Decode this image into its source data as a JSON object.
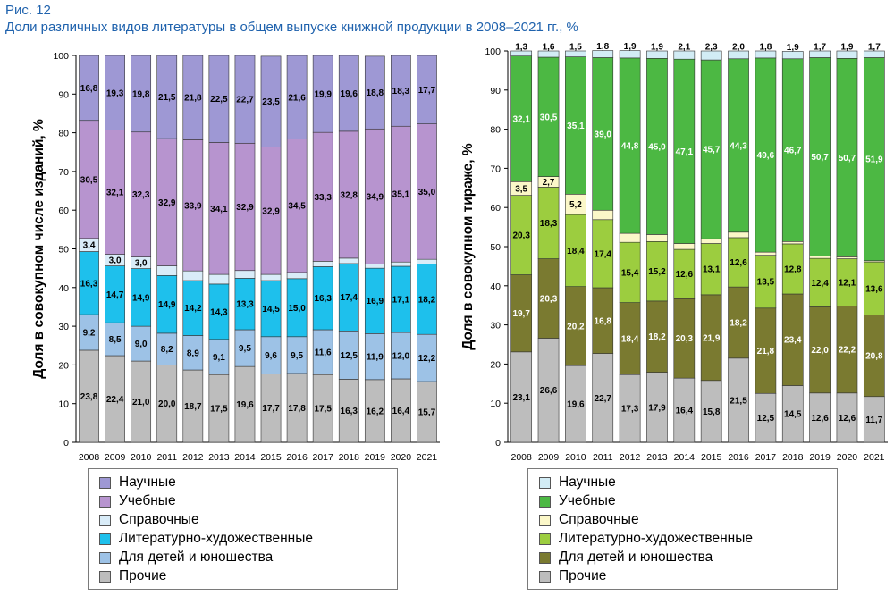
{
  "figure": {
    "number": "Рис. 12",
    "title": "Доли различных видов литературы в общем выпуске книжной продукции в 2008–2021 гг., %"
  },
  "chart_data": [
    {
      "type": "bar",
      "stacked": true,
      "title": "",
      "xlabel": "",
      "ylabel": "Доля в совокупном числе изданий, %",
      "ylim": [
        0,
        100
      ],
      "yticks": [
        0,
        10,
        20,
        30,
        40,
        50,
        60,
        70,
        80,
        90,
        100
      ],
      "grid": false,
      "legend": "bottom",
      "categories": [
        "2008",
        "2009",
        "2010",
        "2011",
        "2012",
        "2013",
        "2014",
        "2015",
        "2016",
        "2017",
        "2018",
        "2019",
        "2020",
        "2021"
      ],
      "series": [
        {
          "name": "Прочие",
          "color": "#bdbdbd",
          "values": [
            23.8,
            22.4,
            21.0,
            20.0,
            18.7,
            17.5,
            19.6,
            17.7,
            17.8,
            17.5,
            16.3,
            16.2,
            16.4,
            15.7
          ],
          "labels": [
            "23,8",
            "22,4",
            "21,0",
            "20,0",
            "18,7",
            "17,5",
            "19,6",
            "17,7",
            "17,8",
            "17,5",
            "16,3",
            "16,2",
            "16,4",
            "15,7"
          ]
        },
        {
          "name": "Для детей и юношества",
          "color": "#9dc2e6",
          "values": [
            9.2,
            8.5,
            9.0,
            8.2,
            8.9,
            9.1,
            9.5,
            9.6,
            9.5,
            11.6,
            12.5,
            11.9,
            12.0,
            12.2
          ],
          "labels": [
            "9,2",
            "8,5",
            "9,0",
            "8,2",
            "8,9",
            "9,1",
            "9,5",
            "9,6",
            "9,5",
            "11,6",
            "12,5",
            "11,9",
            "12,0",
            "12,2"
          ]
        },
        {
          "name": "Литературно-художественные",
          "color": "#1ec0ec",
          "values": [
            16.3,
            14.7,
            14.9,
            14.9,
            14.2,
            14.3,
            13.3,
            14.5,
            15.0,
            16.3,
            17.4,
            16.9,
            17.1,
            18.2
          ],
          "labels": [
            "16,3",
            "14,7",
            "14,9",
            "14,9",
            "14,2",
            "14,3",
            "13,3",
            "14,5",
            "15,0",
            "16,3",
            "17,4",
            "16,9",
            "17,1",
            "18,2"
          ]
        },
        {
          "name": "Справочные",
          "color": "#d9ecf8",
          "values": [
            3.4,
            3.0,
            3.0,
            2.5,
            2.5,
            2.5,
            2.0,
            1.6,
            1.6,
            1.4,
            1.4,
            1.1,
            1.1,
            1.2
          ],
          "labels": [
            "3,4",
            "3,0",
            "3,0",
            "2,5",
            "2,5",
            "2,5",
            "2,0",
            "1,6",
            "1,6",
            "1,4",
            "1,4",
            "1,1",
            "1,1",
            "1,2"
          ]
        },
        {
          "name": "Учебные",
          "color": "#b794cf",
          "values": [
            30.5,
            32.1,
            32.3,
            32.9,
            33.9,
            34.1,
            32.9,
            32.9,
            34.5,
            33.3,
            32.8,
            34.9,
            35.1,
            35.0
          ],
          "labels": [
            "30,5",
            "32,1",
            "32,3",
            "32,9",
            "33,9",
            "34,1",
            "32,9",
            "32,9",
            "34,5",
            "33,3",
            "32,8",
            "34,9",
            "35,1",
            "35,0"
          ]
        },
        {
          "name": "Научные",
          "color": "#9e98d4",
          "values": [
            16.8,
            19.3,
            19.8,
            21.5,
            21.8,
            22.5,
            22.7,
            23.5,
            21.6,
            19.9,
            19.6,
            18.8,
            18.3,
            17.7
          ],
          "labels": [
            "16,8",
            "19,3",
            "19,8",
            "21,5",
            "21,8",
            "22,5",
            "22,7",
            "23,5",
            "21,6",
            "19,9",
            "19,6",
            "18,8",
            "18,3",
            "17,7"
          ]
        }
      ]
    },
    {
      "type": "bar",
      "stacked": true,
      "title": "",
      "xlabel": "",
      "ylabel": "Доля в совокупном тираже, %",
      "ylim": [
        0,
        100
      ],
      "yticks": [
        0,
        10,
        20,
        30,
        40,
        50,
        60,
        70,
        80,
        90,
        100
      ],
      "grid": false,
      "legend": "bottom",
      "categories": [
        "2008",
        "2009",
        "2010",
        "2011",
        "2012",
        "2013",
        "2014",
        "2015",
        "2016",
        "2017",
        "2018",
        "2019",
        "2020",
        "2021"
      ],
      "series": [
        {
          "name": "Прочие",
          "color": "#bdbdbd",
          "values": [
            23.1,
            26.6,
            19.6,
            22.7,
            17.3,
            17.9,
            16.4,
            15.8,
            21.5,
            12.5,
            14.5,
            12.6,
            12.6,
            11.7
          ],
          "labels": [
            "23,1",
            "26,6",
            "19,6",
            "22,7",
            "17,3",
            "17,9",
            "16,4",
            "15,8",
            "21,5",
            "12,5",
            "14,5",
            "12,6",
            "12,6",
            "11,7"
          ]
        },
        {
          "name": "Для детей и юношества",
          "color": "#7a7a30",
          "values": [
            19.7,
            20.3,
            20.2,
            16.8,
            18.4,
            18.2,
            20.3,
            21.9,
            18.2,
            21.8,
            23.4,
            22.0,
            22.2,
            20.8
          ],
          "labels": [
            "19,7",
            "20,3",
            "20,2",
            "16,8",
            "18,4",
            "18,2",
            "20,3",
            "21,9",
            "18,2",
            "21,8",
            "23,4",
            "22,0",
            "22,2",
            "20,8"
          ]
        },
        {
          "name": "Литературно-художественные",
          "color": "#9ccd3f",
          "values": [
            20.3,
            18.3,
            18.4,
            17.4,
            15.4,
            15.2,
            12.6,
            13.1,
            12.6,
            13.5,
            12.8,
            12.4,
            12.1,
            13.6
          ],
          "labels": [
            "20,3",
            "18,3",
            "18,4",
            "17,4",
            "15,4",
            "15,2",
            "12,6",
            "13,1",
            "12,6",
            "13,5",
            "12,8",
            "12,4",
            "12,1",
            "13,6"
          ]
        },
        {
          "name": "Справочные",
          "color": "#fbf7c8",
          "values": [
            3.5,
            2.7,
            5.2,
            2.4,
            2.3,
            1.8,
            1.5,
            1.2,
            1.4,
            0.8,
            0.6,
            0.6,
            0.5,
            0.3
          ],
          "labels": [
            "3,5",
            "2,7",
            "5,2",
            "2,4",
            "2,3",
            "1,8",
            "1,5",
            "1,2",
            "1,4",
            "0,8",
            "0,6",
            "0,6",
            "0,5",
            "0,3"
          ]
        },
        {
          "name": "Учебные",
          "color": "#4cb843",
          "values": [
            32.1,
            30.5,
            35.1,
            39.0,
            44.8,
            45.0,
            47.1,
            45.7,
            44.3,
            49.6,
            46.7,
            50.7,
            50.7,
            51.9
          ],
          "labels": [
            "32,1",
            "30,5",
            "35,1",
            "39,0",
            "44,8",
            "45,0",
            "47,1",
            "45,7",
            "44,3",
            "49,6",
            "46,7",
            "50,7",
            "50,7",
            "51,9"
          ]
        },
        {
          "name": "Научные",
          "color": "#d2ecf5",
          "values": [
            1.3,
            1.6,
            1.5,
            1.8,
            1.9,
            1.9,
            2.1,
            2.3,
            2.0,
            1.8,
            1.9,
            1.7,
            1.9,
            1.7
          ],
          "labels": [
            "1,3",
            "1,6",
            "1,5",
            "1,8",
            "1,9",
            "1,9",
            "2,1",
            "2,3",
            "2,0",
            "1,8",
            "1,9",
            "1,7",
            "1,9",
            "1,7"
          ]
        }
      ]
    }
  ],
  "legends": [
    {
      "items": [
        {
          "label": "Научные",
          "color": "#9e98d4"
        },
        {
          "label": "Учебные",
          "color": "#b794cf"
        },
        {
          "label": "Справочные",
          "color": "#d9ecf8"
        },
        {
          "label": "Литературно-художественные",
          "color": "#1ec0ec"
        },
        {
          "label": "Для детей и юношества",
          "color": "#9dc2e6"
        },
        {
          "label": "Прочие",
          "color": "#bdbdbd"
        }
      ]
    },
    {
      "items": [
        {
          "label": "Научные",
          "color": "#d2ecf5"
        },
        {
          "label": "Учебные",
          "color": "#4cb843"
        },
        {
          "label": "Справочные",
          "color": "#fbf7c8"
        },
        {
          "label": "Литературно-художественные",
          "color": "#9ccd3f"
        },
        {
          "label": "Для детей и юношества",
          "color": "#7a7a30"
        },
        {
          "label": "Прочие",
          "color": "#bdbdbd"
        }
      ]
    }
  ]
}
